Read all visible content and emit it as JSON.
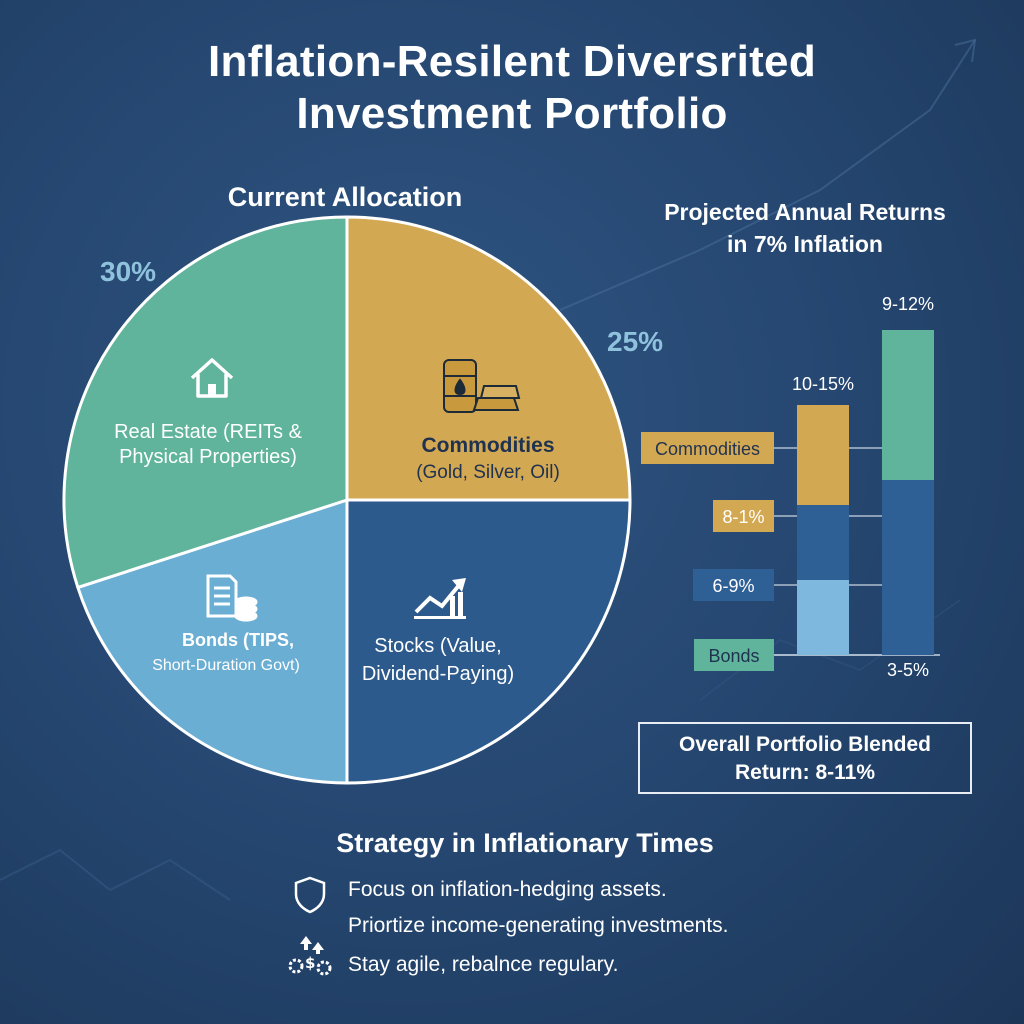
{
  "title": {
    "line1": "Inflation-Resilent Diversrited",
    "line2": "Investment Portfolio"
  },
  "chart_data": [
    {
      "type": "pie",
      "title": "Current Allocation",
      "slices": [
        {
          "label_lines": [
            "Real Estate (REITs &",
            "Physical Properties)"
          ],
          "value": 30,
          "value_label": "30%",
          "color": "#5fb49b",
          "icon": "house-icon"
        },
        {
          "label_lines": [
            "Commodities",
            "(Gold, Silver, Oil)"
          ],
          "value": 25,
          "value_label": "25%",
          "color": "#d3a853",
          "icon": "oil-barrel-gold-icon"
        },
        {
          "label_lines": [
            "Stocks (Value,",
            "Dividend-Paying)"
          ],
          "value": 25,
          "value_label": "",
          "color": "#2d5a8c",
          "icon": "chart-growth-icon"
        },
        {
          "label_lines": [
            "Bonds (TIPS,",
            "Short-Duration Govt)"
          ],
          "value": 20,
          "value_label": "",
          "color": "#6aaed4",
          "icon": "document-coins-icon"
        }
      ]
    },
    {
      "type": "bar",
      "title": "Projected Annual Returns in 7% Inflation",
      "title_lines": [
        "Projected Annual Returns",
        "in 7% Inflation"
      ],
      "stacks": [
        {
          "top_label": "10-15%",
          "segments": [
            {
              "name": "Bonds",
              "value": 3,
              "color": "#7fb8de"
            },
            {
              "name": "Stocks",
              "value": 3,
              "color": "#2e5f95"
            },
            {
              "name": "Commodities",
              "value": 4,
              "color": "#d3a853"
            }
          ]
        },
        {
          "top_label": "9-12%",
          "bottom_label": "3-5%",
          "segments": [
            {
              "name": "Stocks",
              "value": 7,
              "color": "#2e5f95"
            },
            {
              "name": "Real Estate",
              "value": 6,
              "color": "#5fb49b"
            }
          ]
        }
      ],
      "tags": [
        {
          "text": "Commodities",
          "color": "#d3a853",
          "text_color": "#1f3250"
        },
        {
          "text": "8-1%",
          "color": "#d3a853",
          "text_color": "#ffffff"
        },
        {
          "text": "6-9%",
          "color": "#2e5f95",
          "text_color": "#ffffff"
        },
        {
          "text": "Bonds",
          "color": "#5fb49b",
          "text_color": "#1f3250"
        }
      ],
      "ylim": [
        0,
        14
      ]
    }
  ],
  "summary": {
    "line1": "Overall Portfolio Blended",
    "line2": "Return: 8-11%"
  },
  "strategy": {
    "title": "Strategy in Inflationary Times",
    "items": [
      {
        "text": "Focus on inflation-hedging assets.",
        "icon": "shield-icon"
      },
      {
        "text": "Priortize income-generating investments.",
        "icon": ""
      },
      {
        "text": "Stay agile, rebalnce regulary.",
        "icon": "rebalance-gears-icon"
      }
    ]
  }
}
